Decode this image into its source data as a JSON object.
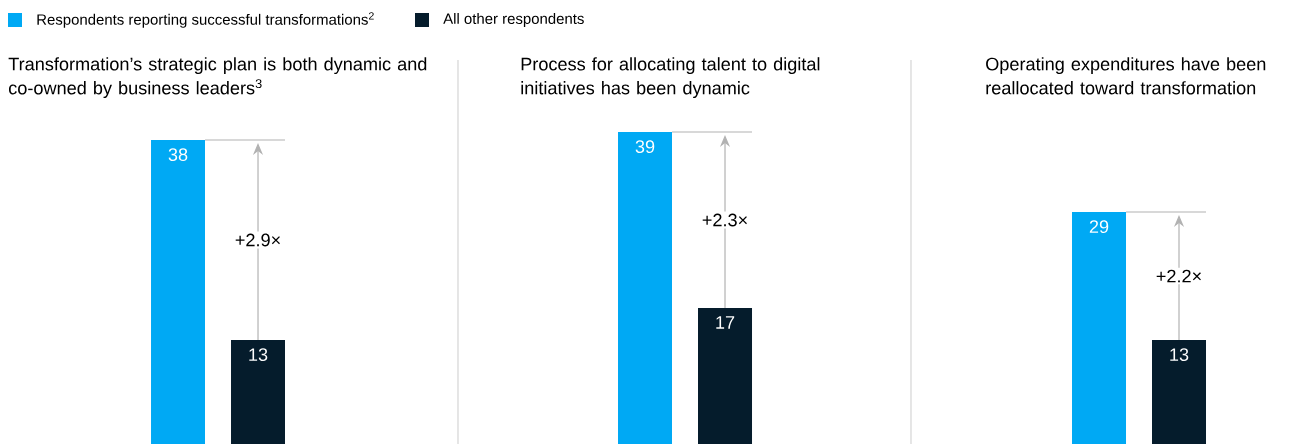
{
  "chart_data": [
    {
      "type": "bar",
      "title": "Transformation’s strategic plan is both dynamic and co-owned by business leaders$^{3}$",
      "categories": [
        null
      ],
      "legend": "top right",
      "data_labels": true,
      "series": [
        {
          "name": "Respondents reporting successful transformations$^{2}$",
          "color": "#00a9f4",
          "values": [
            38
          ]
        },
        {
          "name": "All other respondents",
          "color": "#051c2c",
          "values": [
            13
          ]
        }
      ],
      "annotations": [
        "+2.9×"
      ]
    },
    {
      "type": "bar",
      "title": "Process for allocating talent to digital initiatives has been dynamic",
      "categories": [
        null
      ],
      "data_labels": true,
      "series": [
        {
          "color": "#00a9f4",
          "values": [
            39
          ]
        },
        {
          "color": "#051c2c",
          "values": [
            17
          ]
        }
      ],
      "annotations": [
        "+2.3×"
      ]
    },
    {
      "type": "bar",
      "title": "Operating expenditures have been reallocated toward transformation",
      "categories": [
        null
      ],
      "data_labels": true,
      "series": [
        {
          "color": "#00a9f4",
          "values": [
            29
          ]
        },
        {
          "color": "#051c2c",
          "values": [
            13
          ]
        }
      ],
      "annotations": [
        "+2.2×"
      ]
    }
  ]
}
